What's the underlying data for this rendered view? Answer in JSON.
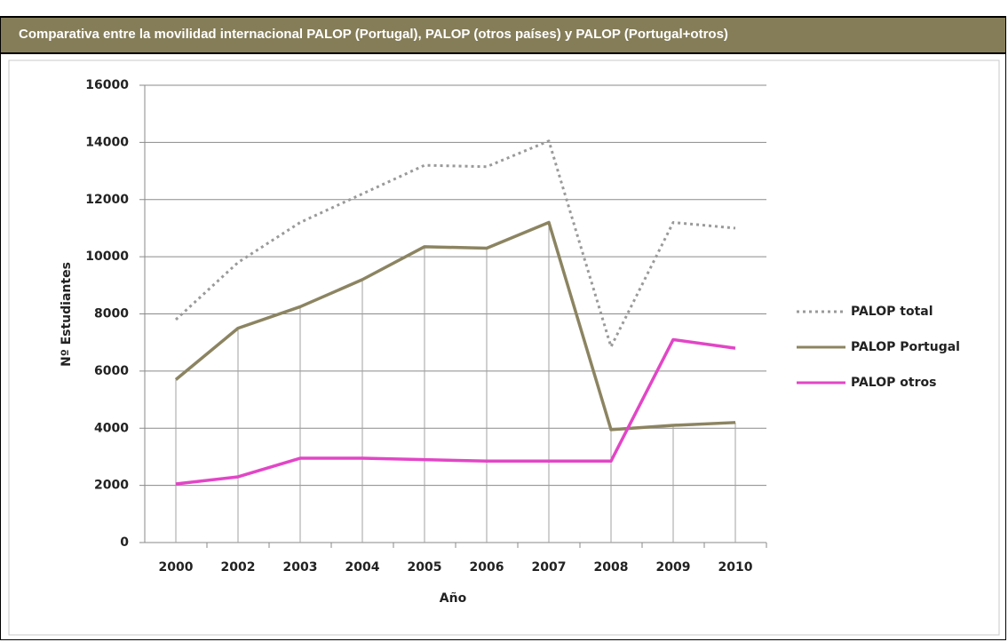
{
  "panel_title": "Comparativa entre la movilidad internacional PALOP (Portugal), PALOP (otros países) y PALOP (Portugal+otros)",
  "chart_data": {
    "type": "line",
    "x_label": "Año",
    "y_label": "Nº Estudiantes",
    "categories": [
      "2000",
      "2002",
      "2003",
      "2004",
      "2005",
      "2006",
      "2007",
      "2008",
      "2009",
      "2010"
    ],
    "series": [
      {
        "name": "PALOP total",
        "color": "#9a9a9a",
        "dash": "dotted",
        "values": [
          7800,
          9800,
          11200,
          12200,
          13200,
          13150,
          14050,
          6850,
          11200,
          11000
        ]
      },
      {
        "name": "PALOP Portugal",
        "color": "#8c8461",
        "dash": "solid",
        "values": [
          5700,
          7500,
          8250,
          9200,
          10350,
          10300,
          11200,
          3950,
          4100,
          4200
        ]
      },
      {
        "name": "PALOP otros",
        "color": "#e246c6",
        "dash": "solid",
        "values": [
          2050,
          2300,
          2950,
          2950,
          2900,
          2850,
          2850,
          2850,
          7100,
          6800
        ]
      }
    ],
    "ylim": [
      0,
      16000
    ],
    "yticks": [
      0,
      2000,
      4000,
      6000,
      8000,
      10000,
      12000,
      14000,
      16000
    ],
    "grid": true,
    "legend": "right"
  }
}
